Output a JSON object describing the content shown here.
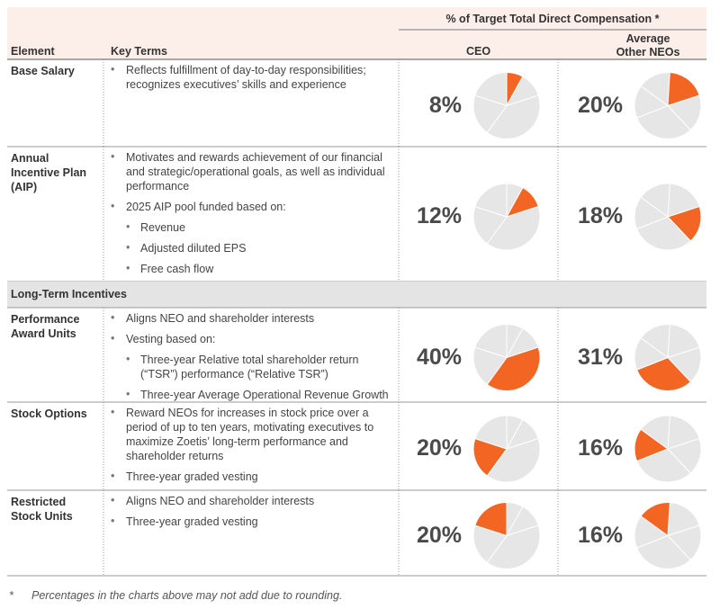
{
  "header": {
    "element": "Element",
    "key_terms": "Key Terms",
    "comp_title": "% of Target Total Direct Compensation *",
    "ceo": "CEO",
    "other": "Average Other NEOs"
  },
  "rows": [
    {
      "element": "Base Salary",
      "terms": [
        {
          "text": "Reflects fulfillment of day-to-day responsibilities; recognizes executives’ skills and experience"
        }
      ],
      "ceo": {
        "value": 8,
        "label": "8%"
      },
      "other": {
        "value": 20,
        "label": "20%"
      }
    },
    {
      "element": "Annual Incentive Plan (AIP)",
      "terms": [
        {
          "text": "Motivates and rewards achievement of our financial and strategic/operational goals, as well as individual performance"
        },
        {
          "text": "2025 AIP pool funded based on:",
          "sub": [
            "Revenue",
            "Adjusted diluted EPS",
            "Free cash flow"
          ]
        }
      ],
      "ceo": {
        "value": 12,
        "label": "12%"
      },
      "other": {
        "value": 18,
        "label": "18%"
      }
    },
    {
      "section": "Long-Term Incentives"
    },
    {
      "element": "Performance Award Units",
      "terms": [
        {
          "text": "Aligns NEO and shareholder interests"
        },
        {
          "text": "Vesting based on:",
          "sub": [
            "Three-year Relative total shareholder return (“TSR”) performance (“Relative TSR”)",
            "Three-year Average Operational Revenue Growth"
          ]
        }
      ],
      "ceo": {
        "value": 40,
        "label": "40%"
      },
      "other": {
        "value": 31,
        "label": "31%"
      }
    },
    {
      "element": "Stock Options",
      "terms": [
        {
          "text": "Reward NEOs for increases in stock price over a period of up to ten years, motivating executives to maximize Zoetis’ long-term performance and shareholder returns"
        },
        {
          "text": "Three-year graded vesting"
        }
      ],
      "ceo": {
        "value": 20,
        "label": "20%"
      },
      "other": {
        "value": 16,
        "label": "16%"
      }
    },
    {
      "element": "Restricted Stock Units",
      "terms": [
        {
          "text": "Aligns NEO and shareholder interests"
        },
        {
          "text": "Three-year graded vesting"
        }
      ],
      "ceo": {
        "value": 20,
        "label": "20%"
      },
      "other": {
        "value": 16,
        "label": "16%"
      }
    }
  ],
  "footnote": {
    "mark": "*",
    "text": "Percentages in the charts above may not add due to rounding."
  }
}
